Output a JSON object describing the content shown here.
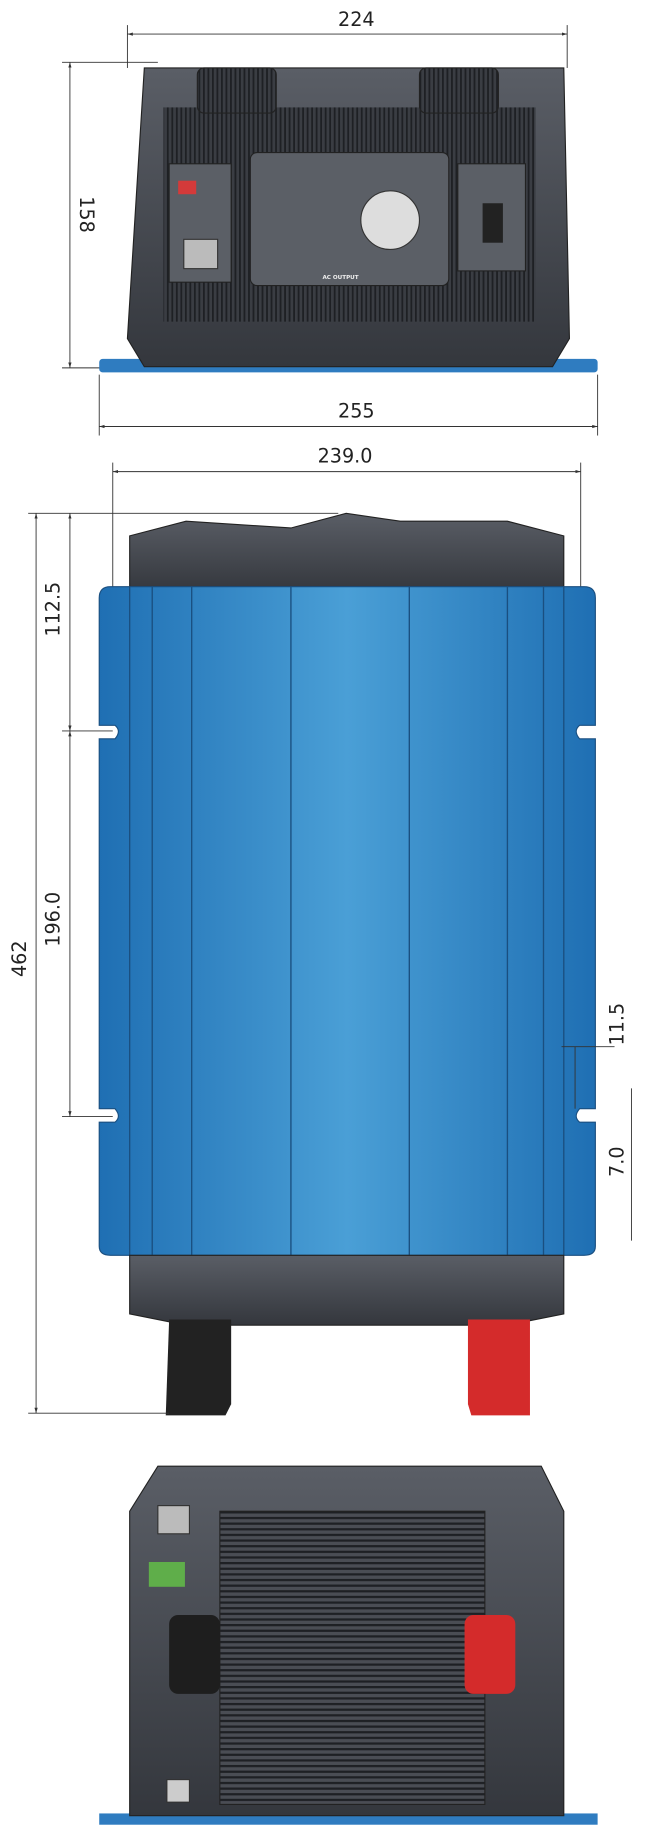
{
  "top_view": {
    "width": "224",
    "height": "158",
    "base_width": "255",
    "panel_label": "AC OUTPUT"
  },
  "side_view": {
    "width": "239.0",
    "slot_offset": "112.5",
    "slot_spacing": "196.0",
    "total_length": "462",
    "slot_depth": "11.5",
    "slot_width": "7.0"
  }
}
